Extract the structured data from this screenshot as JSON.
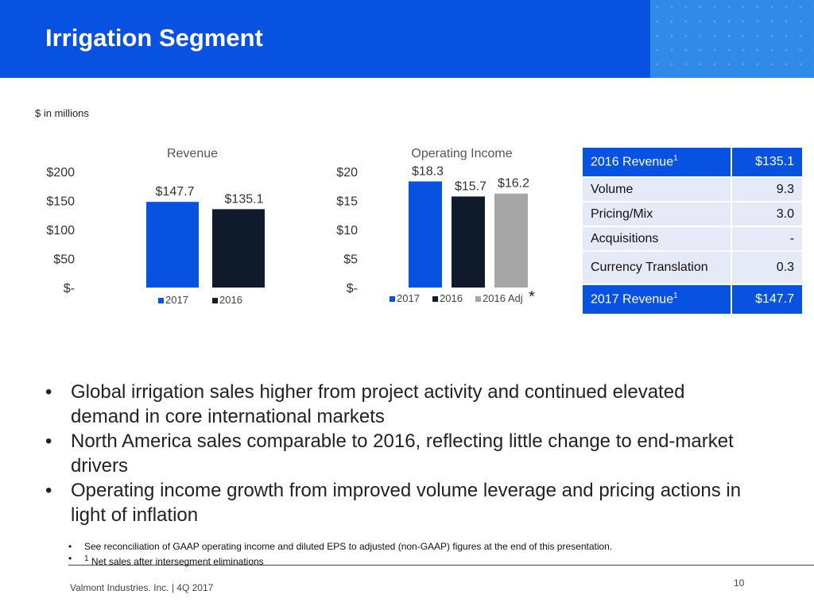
{
  "header": {
    "title": "Irrigation Segment"
  },
  "units_note": "$ in millions",
  "chart_data": [
    {
      "type": "bar",
      "title": "Revenue",
      "categories": [
        "2017",
        "2016"
      ],
      "values": [
        147.7,
        135.1
      ],
      "value_labels": [
        "$147.7",
        "$135.1"
      ],
      "colors": [
        "#0752e0",
        "#0f1b2b"
      ],
      "ylim": [
        0,
        200
      ],
      "yticks": [
        0,
        50,
        100,
        150,
        200
      ],
      "ytick_labels": [
        "$-",
        "$50",
        "$100",
        "$150",
        "$200"
      ],
      "legend": [
        "2017",
        "2016"
      ],
      "legend_position": "bottom",
      "grid": false
    },
    {
      "type": "bar",
      "title": "Operating Income",
      "categories": [
        "2017",
        "2016",
        "2016 Adj"
      ],
      "values": [
        18.3,
        15.7,
        16.2
      ],
      "value_labels": [
        "$18.3",
        "$15.7",
        "$16.2"
      ],
      "colors": [
        "#0752e0",
        "#0f1b2b",
        "#a6a6a6"
      ],
      "ylim": [
        0,
        20
      ],
      "yticks": [
        0,
        5,
        10,
        15,
        20
      ],
      "ytick_labels": [
        "$-",
        "$5",
        "$10",
        "$15",
        "$20"
      ],
      "legend": [
        "2017",
        "2016",
        "2016 Adj"
      ],
      "legend_position": "bottom",
      "footnote_marker": "*",
      "grid": false
    }
  ],
  "bridge": {
    "start": {
      "label": "2016 Revenue",
      "sup": "1",
      "value": "$135.1"
    },
    "rows": [
      {
        "label": "Volume",
        "value": "9.3"
      },
      {
        "label": "Pricing/Mix",
        "value": "3.0"
      },
      {
        "label": "Acquisitions",
        "value": "-"
      },
      {
        "label": "Currency Translation",
        "value": "0.3"
      }
    ],
    "end": {
      "label": "2017 Revenue",
      "sup": "1",
      "value": "$147.7"
    }
  },
  "bullets": [
    "Global irrigation sales higher from project activity and continued elevated demand in core international markets",
    "North America sales comparable to 2016, reflecting little change to end-market drivers",
    "Operating income growth from improved volume leverage and pricing actions in light of inflation"
  ],
  "notes": {
    "note1": "See reconciliation of GAAP operating income and diluted EPS to adjusted (non-GAAP) figures at the end of this presentation.",
    "note2_sup": "1",
    "note2": " Net sales after intersegment eliminations"
  },
  "footer": {
    "text": "Valmont Industries. Inc.  |   4Q 2017",
    "page": "10"
  }
}
